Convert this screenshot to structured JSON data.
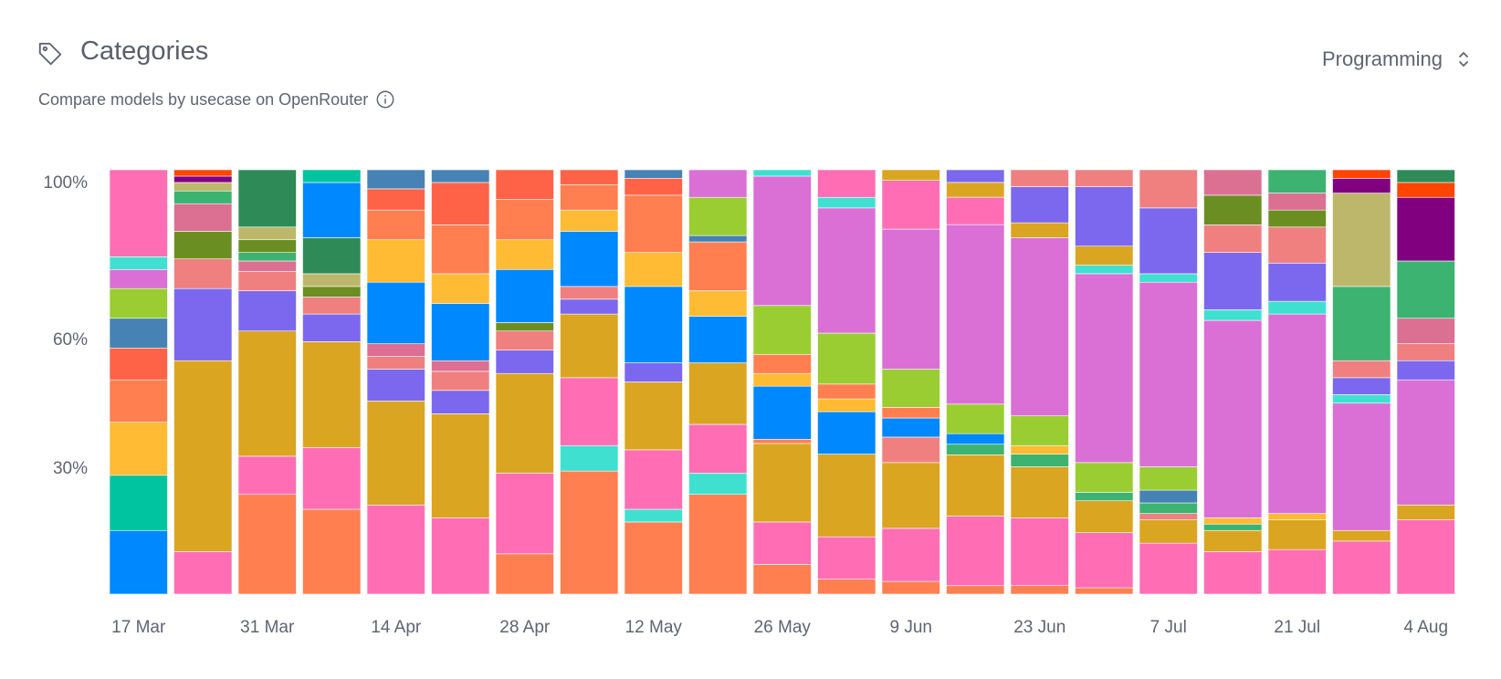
{
  "header": {
    "title": "Categories",
    "subtitle": "Compare models by usecase on OpenRouter",
    "tag_icon": "tag-icon",
    "info_icon": "info-icon"
  },
  "selector": {
    "value": "Programming",
    "icon": "chevron-up-down-icon"
  },
  "colors": {
    "text": "#5f6470",
    "palette": {
      "c1": "#ff6eb4",
      "c2": "#40e0d0",
      "c3": "#da70d6",
      "c4": "#9acd32",
      "c5": "#4682b4",
      "c6": "#ff6347",
      "c7": "#ff7f50",
      "c8": "#ffbb33",
      "c9": "#00c49f",
      "c10": "#0088fe",
      "c11": "#daa520",
      "c12": "#7b68ee",
      "c13": "#f08080",
      "c14": "#db7093",
      "c15": "#6b8e23",
      "c16": "#3cb371",
      "c17": "#800080",
      "c18": "#ff4500",
      "c19": "#2e8b57",
      "c20": "#bdb76b",
      "c21": "#ff8c42",
      "c22": "#3cb371",
      "c23": "#bdb76b"
    }
  },
  "chart_data": {
    "type": "bar",
    "stacked": true,
    "normalized": true,
    "title": "Categories",
    "yticks": [
      {
        "value": 100,
        "label": "100%"
      },
      {
        "value": 60,
        "label": "60%"
      },
      {
        "value": 30,
        "label": "30%"
      }
    ],
    "ylim": [
      0,
      100
    ],
    "xticks": [
      {
        "index": 0,
        "label": "17 Mar"
      },
      {
        "index": 2,
        "label": "31 Mar"
      },
      {
        "index": 4,
        "label": "14 Apr"
      },
      {
        "index": 6,
        "label": "28 Apr"
      },
      {
        "index": 8,
        "label": "12 May"
      },
      {
        "index": 10,
        "label": "26 May"
      },
      {
        "index": 12,
        "label": "9 Jun"
      },
      {
        "index": 14,
        "label": "23 Jun"
      },
      {
        "index": 16,
        "label": "7 Jul"
      },
      {
        "index": 18,
        "label": "21 Jul"
      },
      {
        "index": 20,
        "label": "4 Aug"
      }
    ],
    "bars": [
      {
        "week": "17 Mar",
        "segments": [
          {
            "c": "#0088fe",
            "v": 15
          },
          {
            "c": "#00c49f",
            "v": 13
          },
          {
            "c": "#ffbb33",
            "v": 12.5
          },
          {
            "c": "#ff7f50",
            "v": 10
          },
          {
            "c": "#ff6347",
            "v": 7.5
          },
          {
            "c": "#4682b4",
            "v": 7
          },
          {
            "c": "#9acd32",
            "v": 7
          },
          {
            "c": "#da70d6",
            "v": 4.5
          },
          {
            "c": "#40e0d0",
            "v": 3
          },
          {
            "c": "#ff6eb4",
            "v": 20.5
          }
        ]
      },
      {
        "week": "24 Mar",
        "segments": [
          {
            "c": "#ff6eb4",
            "v": 10
          },
          {
            "c": "#daa520",
            "v": 45
          },
          {
            "c": "#7b68ee",
            "v": 17
          },
          {
            "c": "#f08080",
            "v": 7
          },
          {
            "c": "#6b8e23",
            "v": 6.5
          },
          {
            "c": "#db7093",
            "v": 6.5
          },
          {
            "c": "#3cb371",
            "v": 3
          },
          {
            "c": "#bdb76b",
            "v": 2
          },
          {
            "c": "#800080",
            "v": 1.5
          },
          {
            "c": "#ff4500",
            "v": 1.5
          }
        ]
      },
      {
        "week": "31 Mar",
        "segments": [
          {
            "c": "#ff7f50",
            "v": 23.5
          },
          {
            "c": "#ff6eb4",
            "v": 9
          },
          {
            "c": "#daa520",
            "v": 29.5
          },
          {
            "c": "#7b68ee",
            "v": 9.5
          },
          {
            "c": "#f08080",
            "v": 4.5
          },
          {
            "c": "#db7093",
            "v": 2.5
          },
          {
            "c": "#3cb371",
            "v": 2
          },
          {
            "c": "#6b8e23",
            "v": 3
          },
          {
            "c": "#bdb76b",
            "v": 3
          },
          {
            "c": "#2e8b57",
            "v": 13.5
          }
        ]
      },
      {
        "week": "7 Apr",
        "segments": [
          {
            "c": "#ff7f50",
            "v": 20
          },
          {
            "c": "#ff6eb4",
            "v": 14.5
          },
          {
            "c": "#daa520",
            "v": 25
          },
          {
            "c": "#7b68ee",
            "v": 6.5
          },
          {
            "c": "#f08080",
            "v": 4
          },
          {
            "c": "#6b8e23",
            "v": 2.5
          },
          {
            "c": "#bdb76b",
            "v": 3
          },
          {
            "c": "#2e8b57",
            "v": 8.5
          },
          {
            "c": "#0088fe",
            "v": 13
          },
          {
            "c": "#00c49f",
            "v": 3
          }
        ]
      },
      {
        "week": "14 Apr",
        "segments": [
          {
            "c": "#ff6eb4",
            "v": 21
          },
          {
            "c": "#daa520",
            "v": 24.5
          },
          {
            "c": "#7b68ee",
            "v": 7.5
          },
          {
            "c": "#f08080",
            "v": 3
          },
          {
            "c": "#db7093",
            "v": 3
          },
          {
            "c": "#0088fe",
            "v": 14.5
          },
          {
            "c": "#ffbb33",
            "v": 10
          },
          {
            "c": "#ff7f50",
            "v": 7
          },
          {
            "c": "#ff6347",
            "v": 5
          },
          {
            "c": "#4682b4",
            "v": 4.5
          }
        ]
      },
      {
        "week": "21 Apr",
        "segments": [
          {
            "c": "#ff6eb4",
            "v": 18
          },
          {
            "c": "#daa520",
            "v": 24.5
          },
          {
            "c": "#7b68ee",
            "v": 5.5
          },
          {
            "c": "#f08080",
            "v": 4.5
          },
          {
            "c": "#db7093",
            "v": 2.5
          },
          {
            "c": "#0088fe",
            "v": 13.5
          },
          {
            "c": "#ffbb33",
            "v": 7
          },
          {
            "c": "#ff7f50",
            "v": 11.5
          },
          {
            "c": "#ff6347",
            "v": 10
          },
          {
            "c": "#4682b4",
            "v": 3
          }
        ]
      },
      {
        "week": "28 Apr",
        "segments": [
          {
            "c": "#ff7f50",
            "v": 9.5
          },
          {
            "c": "#ff6eb4",
            "v": 19
          },
          {
            "c": "#daa520",
            "v": 23.5
          },
          {
            "c": "#7b68ee",
            "v": 5.5
          },
          {
            "c": "#f08080",
            "v": 4.5
          },
          {
            "c": "#6b8e23",
            "v": 2
          },
          {
            "c": "#0088fe",
            "v": 12.5
          },
          {
            "c": "#ffbb33",
            "v": 7
          },
          {
            "c": "#ff7f50",
            "v": 9.5
          },
          {
            "c": "#ff6347",
            "v": 7
          }
        ]
      },
      {
        "week": "5 May",
        "segments": [
          {
            "c": "#ff7f50",
            "v": 29
          },
          {
            "c": "#40e0d0",
            "v": 6
          },
          {
            "c": "#ff6eb4",
            "v": 16
          },
          {
            "c": "#daa520",
            "v": 15
          },
          {
            "c": "#7b68ee",
            "v": 3.5
          },
          {
            "c": "#f08080",
            "v": 3
          },
          {
            "c": "#0088fe",
            "v": 13
          },
          {
            "c": "#ffbb33",
            "v": 5
          },
          {
            "c": "#ff7f50",
            "v": 6
          },
          {
            "c": "#ff6347",
            "v": 3.5
          }
        ]
      },
      {
        "week": "12 May",
        "segments": [
          {
            "c": "#ff7f50",
            "v": 17
          },
          {
            "c": "#40e0d0",
            "v": 3
          },
          {
            "c": "#ff6eb4",
            "v": 14
          },
          {
            "c": "#daa520",
            "v": 16
          },
          {
            "c": "#7b68ee",
            "v": 4.5
          },
          {
            "c": "#0088fe",
            "v": 18
          },
          {
            "c": "#ffbb33",
            "v": 8
          },
          {
            "c": "#ff7f50",
            "v": 13.5
          },
          {
            "c": "#ff6347",
            "v": 4
          },
          {
            "c": "#4682b4",
            "v": 2
          }
        ]
      },
      {
        "week": "19 May",
        "segments": [
          {
            "c": "#ff7f50",
            "v": 23.5
          },
          {
            "c": "#40e0d0",
            "v": 5
          },
          {
            "c": "#ff6eb4",
            "v": 11.5
          },
          {
            "c": "#daa520",
            "v": 14.5
          },
          {
            "c": "#0088fe",
            "v": 11
          },
          {
            "c": "#ffbb33",
            "v": 6
          },
          {
            "c": "#ff7f50",
            "v": 11.5
          },
          {
            "c": "#4682b4",
            "v": 1.5
          },
          {
            "c": "#9acd32",
            "v": 9
          },
          {
            "c": "#da70d6",
            "v": 6.5
          }
        ]
      },
      {
        "week": "26 May",
        "segments": [
          {
            "c": "#ff7f50",
            "v": 7
          },
          {
            "c": "#ff6eb4",
            "v": 10
          },
          {
            "c": "#daa520",
            "v": 18.5
          },
          {
            "c": "#ff7f50",
            "v": 1
          },
          {
            "c": "#0088fe",
            "v": 12.5
          },
          {
            "c": "#ffbb33",
            "v": 3
          },
          {
            "c": "#ff7f50",
            "v": 4.5
          },
          {
            "c": "#9acd32",
            "v": 11.5
          },
          {
            "c": "#da70d6",
            "v": 30.5
          },
          {
            "c": "#40e0d0",
            "v": 1.5
          }
        ]
      },
      {
        "week": "2 Jun",
        "segments": [
          {
            "c": "#ff7f50",
            "v": 3.5
          },
          {
            "c": "#ff6eb4",
            "v": 10
          },
          {
            "c": "#daa520",
            "v": 19.5
          },
          {
            "c": "#0088fe",
            "v": 10
          },
          {
            "c": "#ffbb33",
            "v": 3
          },
          {
            "c": "#ff7f50",
            "v": 3.5
          },
          {
            "c": "#9acd32",
            "v": 12
          },
          {
            "c": "#da70d6",
            "v": 29.5
          },
          {
            "c": "#40e0d0",
            "v": 2.5
          },
          {
            "c": "#ff6eb4",
            "v": 6.5
          }
        ]
      },
      {
        "week": "9 Jun",
        "segments": [
          {
            "c": "#ff7f50",
            "v": 3
          },
          {
            "c": "#ff6eb4",
            "v": 12.5
          },
          {
            "c": "#daa520",
            "v": 15.5
          },
          {
            "c": "#f08080",
            "v": 6
          },
          {
            "c": "#0088fe",
            "v": 4.5
          },
          {
            "c": "#ff7f50",
            "v": 2.5
          },
          {
            "c": "#9acd32",
            "v": 9
          },
          {
            "c": "#da70d6",
            "v": 33
          },
          {
            "c": "#ff6eb4",
            "v": 11.5
          },
          {
            "c": "#daa520",
            "v": 2.5
          }
        ]
      },
      {
        "week": "16 Jun",
        "segments": [
          {
            "c": "#ff7f50",
            "v": 2
          },
          {
            "c": "#ff6eb4",
            "v": 16.5
          },
          {
            "c": "#daa520",
            "v": 14.5
          },
          {
            "c": "#3cb371",
            "v": 2.5
          },
          {
            "c": "#0088fe",
            "v": 2.5
          },
          {
            "c": "#9acd32",
            "v": 7
          },
          {
            "c": "#da70d6",
            "v": 42.5
          },
          {
            "c": "#ff6eb4",
            "v": 6.5
          },
          {
            "c": "#daa520",
            "v": 3.5
          },
          {
            "c": "#7b68ee",
            "v": 3
          }
        ]
      },
      {
        "week": "23 Jun",
        "segments": [
          {
            "c": "#ff7f50",
            "v": 2
          },
          {
            "c": "#ff6eb4",
            "v": 16
          },
          {
            "c": "#daa520",
            "v": 12
          },
          {
            "c": "#3cb371",
            "v": 3
          },
          {
            "c": "#ffbb33",
            "v": 2
          },
          {
            "c": "#9acd32",
            "v": 7
          },
          {
            "c": "#da70d6",
            "v": 42
          },
          {
            "c": "#daa520",
            "v": 3.5
          },
          {
            "c": "#7b68ee",
            "v": 8.5
          },
          {
            "c": "#f08080",
            "v": 4
          }
        ]
      },
      {
        "week": "30 Jun",
        "segments": [
          {
            "c": "#ff7f50",
            "v": 1.5
          },
          {
            "c": "#ff6eb4",
            "v": 13
          },
          {
            "c": "#daa520",
            "v": 7.5
          },
          {
            "c": "#3cb371",
            "v": 2
          },
          {
            "c": "#9acd32",
            "v": 7
          },
          {
            "c": "#da70d6",
            "v": 44.5
          },
          {
            "c": "#40e0d0",
            "v": 2
          },
          {
            "c": "#daa520",
            "v": 4.5
          },
          {
            "c": "#7b68ee",
            "v": 14
          },
          {
            "c": "#f08080",
            "v": 4
          }
        ]
      },
      {
        "week": "7 Jul",
        "segments": [
          {
            "c": "#ff6eb4",
            "v": 12
          },
          {
            "c": "#daa520",
            "v": 5.5
          },
          {
            "c": "#f08080",
            "v": 1.5
          },
          {
            "c": "#3cb371",
            "v": 2.5
          },
          {
            "c": "#4682b4",
            "v": 3
          },
          {
            "c": "#9acd32",
            "v": 5.5
          },
          {
            "c": "#da70d6",
            "v": 43.5
          },
          {
            "c": "#40e0d0",
            "v": 2
          },
          {
            "c": "#7b68ee",
            "v": 15.5
          },
          {
            "c": "#f08080",
            "v": 9
          }
        ]
      },
      {
        "week": "14 Jul",
        "segments": [
          {
            "c": "#ff6eb4",
            "v": 10
          },
          {
            "c": "#daa520",
            "v": 5
          },
          {
            "c": "#3cb371",
            "v": 1.5
          },
          {
            "c": "#ffbb33",
            "v": 1.5
          },
          {
            "c": "#da70d6",
            "v": 46.5
          },
          {
            "c": "#40e0d0",
            "v": 2.5
          },
          {
            "c": "#7b68ee",
            "v": 13.5
          },
          {
            "c": "#f08080",
            "v": 6.5
          },
          {
            "c": "#6b8e23",
            "v": 7
          },
          {
            "c": "#db7093",
            "v": 6
          }
        ]
      },
      {
        "week": "21 Jul",
        "segments": [
          {
            "c": "#ff6eb4",
            "v": 10.5
          },
          {
            "c": "#daa520",
            "v": 7
          },
          {
            "c": "#ffbb33",
            "v": 1.5
          },
          {
            "c": "#da70d6",
            "v": 47
          },
          {
            "c": "#40e0d0",
            "v": 3
          },
          {
            "c": "#7b68ee",
            "v": 9
          },
          {
            "c": "#f08080",
            "v": 8.5
          },
          {
            "c": "#6b8e23",
            "v": 4
          },
          {
            "c": "#db7093",
            "v": 4
          },
          {
            "c": "#3cb371",
            "v": 5.5
          }
        ]
      },
      {
        "week": "28 Jul",
        "segments": [
          {
            "c": "#ff6eb4",
            "v": 12.5
          },
          {
            "c": "#daa520",
            "v": 2.5
          },
          {
            "c": "#da70d6",
            "v": 30
          },
          {
            "c": "#40e0d0",
            "v": 2
          },
          {
            "c": "#7b68ee",
            "v": 4
          },
          {
            "c": "#f08080",
            "v": 4
          },
          {
            "c": "#3cb371",
            "v": 17.5
          },
          {
            "c": "#bdb76b",
            "v": 22
          },
          {
            "c": "#800080",
            "v": 3.5
          },
          {
            "c": "#ff4500",
            "v": 2
          }
        ]
      },
      {
        "week": "4 Aug",
        "segments": [
          {
            "c": "#ff6eb4",
            "v": 17.5
          },
          {
            "c": "#daa520",
            "v": 3.5
          },
          {
            "c": "#da70d6",
            "v": 29.5
          },
          {
            "c": "#7b68ee",
            "v": 4.5
          },
          {
            "c": "#f08080",
            "v": 4
          },
          {
            "c": "#db7093",
            "v": 6
          },
          {
            "c": "#3cb371",
            "v": 13.5
          },
          {
            "c": "#800080",
            "v": 15
          },
          {
            "c": "#ff4500",
            "v": 3.5
          },
          {
            "c": "#2e8b57",
            "v": 3
          }
        ]
      }
    ]
  }
}
